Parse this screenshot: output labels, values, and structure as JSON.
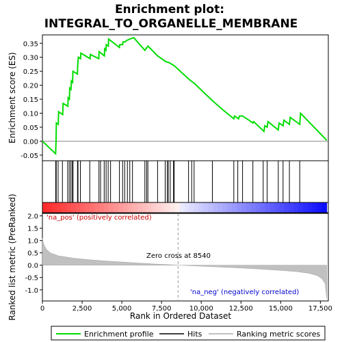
{
  "chart_data": {
    "type": "line",
    "title_line1": "Enrichment plot:",
    "title_line2": "INTEGRAL_TO_ORGANELLE_MEMBRANE",
    "top_panel": {
      "ylabel": "Enrichment score (ES)",
      "ylim": [
        -0.07,
        0.38
      ],
      "yticks": [
        -0.05,
        0.0,
        0.05,
        0.1,
        0.15,
        0.2,
        0.25,
        0.3,
        0.35
      ],
      "ytick_labels": [
        "-0.05",
        "0.00",
        "0.05",
        "0.10",
        "0.15",
        "0.20",
        "0.25",
        "0.30",
        "0.35"
      ],
      "color": "#00dd00",
      "es_curve": [
        [
          0,
          0
        ],
        [
          830,
          -0.045
        ],
        [
          860,
          0.005
        ],
        [
          880,
          0.065
        ],
        [
          1000,
          0.06
        ],
        [
          1020,
          0.105
        ],
        [
          1280,
          0.095
        ],
        [
          1300,
          0.135
        ],
        [
          1600,
          0.125
        ],
        [
          1620,
          0.155
        ],
        [
          1700,
          0.15
        ],
        [
          1720,
          0.19
        ],
        [
          1800,
          0.185
        ],
        [
          1820,
          0.215
        ],
        [
          1900,
          0.21
        ],
        [
          1920,
          0.25
        ],
        [
          2200,
          0.24
        ],
        [
          2220,
          0.27
        ],
        [
          2260,
          0.3
        ],
        [
          2400,
          0.295
        ],
        [
          2420,
          0.315
        ],
        [
          3000,
          0.295
        ],
        [
          3020,
          0.31
        ],
        [
          3550,
          0.295
        ],
        [
          3570,
          0.32
        ],
        [
          3900,
          0.305
        ],
        [
          3920,
          0.33
        ],
        [
          4000,
          0.325
        ],
        [
          4020,
          0.345
        ],
        [
          4150,
          0.34
        ],
        [
          4170,
          0.365
        ],
        [
          4850,
          0.335
        ],
        [
          4870,
          0.345
        ],
        [
          5050,
          0.345
        ],
        [
          5070,
          0.355
        ],
        [
          5200,
          0.355
        ],
        [
          5300,
          0.36
        ],
        [
          5500,
          0.365
        ],
        [
          5750,
          0.37
        ],
        [
          6450,
          0.325
        ],
        [
          6650,
          0.34
        ],
        [
          7250,
          0.305
        ],
        [
          7750,
          0.285
        ],
        [
          8000,
          0.28
        ],
        [
          8300,
          0.27
        ],
        [
          9250,
          0.22
        ],
        [
          9600,
          0.205
        ],
        [
          10700,
          0.145
        ],
        [
          11300,
          0.115
        ],
        [
          12050,
          0.08
        ],
        [
          12100,
          0.09
        ],
        [
          12350,
          0.08
        ],
        [
          12400,
          0.09
        ],
        [
          12600,
          0.09
        ],
        [
          13000,
          0.075
        ],
        [
          13250,
          0.065
        ],
        [
          13300,
          0.07
        ],
        [
          13950,
          0.035
        ],
        [
          14000,
          0.055
        ],
        [
          14150,
          0.05
        ],
        [
          14200,
          0.07
        ],
        [
          14850,
          0.04
        ],
        [
          14900,
          0.065
        ],
        [
          15150,
          0.055
        ],
        [
          15200,
          0.075
        ],
        [
          15550,
          0.06
        ],
        [
          15600,
          0.085
        ],
        [
          16200,
          0.06
        ],
        [
          16250,
          0.1
        ],
        [
          17900,
          0.003
        ]
      ]
    },
    "hits": [
      840,
      870,
      990,
      1260,
      1590,
      1690,
      1790,
      1880,
      1930,
      2210,
      2240,
      2390,
      2980,
      3560,
      3660,
      3890,
      4010,
      4140,
      4290,
      4850,
      5050,
      5180,
      5350,
      5500,
      5670,
      6450,
      6560,
      6640,
      7250,
      7730,
      7860,
      7930,
      8050,
      8250,
      8300,
      9200,
      9400,
      9550,
      10700,
      12050,
      12300,
      12600,
      13250,
      13900,
      14150,
      14850,
      15150,
      15550,
      16200
    ],
    "bottom_panel": {
      "ylabel": "Ranked list metric (PreRanked)",
      "xlabel": "Rank in Ordered Dataset",
      "xlim": [
        0,
        18000
      ],
      "xticks": [
        0,
        2500,
        5000,
        7500,
        10000,
        12500,
        15000,
        17500
      ],
      "xtick_labels": [
        "0",
        "2,500",
        "5,000",
        "7,500",
        "10,000",
        "12,500",
        "15,000",
        "17,500"
      ],
      "ylim": [
        -1.45,
        2.1
      ],
      "yticks": [
        -1.0,
        -0.5,
        0.0,
        0.5,
        1.0,
        1.5,
        2.0
      ],
      "ytick_labels": [
        "-1.0",
        "-0.5",
        "0.0",
        "0.5",
        "1.0",
        "1.5",
        "2.0"
      ],
      "metric_curve": [
        [
          0,
          1.1
        ],
        [
          80,
          0.85
        ],
        [
          250,
          0.65
        ],
        [
          500,
          0.5
        ],
        [
          1000,
          0.38
        ],
        [
          2000,
          0.28
        ],
        [
          3000,
          0.22
        ],
        [
          4000,
          0.17
        ],
        [
          5000,
          0.13
        ],
        [
          6000,
          0.09
        ],
        [
          7000,
          0.05
        ],
        [
          8000,
          0.02
        ],
        [
          8540,
          0.0
        ],
        [
          9000,
          -0.01
        ],
        [
          10000,
          -0.04
        ],
        [
          11000,
          -0.07
        ],
        [
          12000,
          -0.1
        ],
        [
          13000,
          -0.13
        ],
        [
          14000,
          -0.17
        ],
        [
          15000,
          -0.21
        ],
        [
          16000,
          -0.26
        ],
        [
          16800,
          -0.33
        ],
        [
          17300,
          -0.42
        ],
        [
          17600,
          -0.55
        ],
        [
          17800,
          -0.75
        ],
        [
          17900,
          -1.35
        ]
      ],
      "zero_cross_label": "Zero cross at 8540",
      "zero_cross": 8540,
      "pos_label": "'na_pos' (positively correlated)",
      "neg_label": "'na_neg' (negatively correlated)"
    },
    "legend": [
      {
        "label": "Enrichment profile",
        "color": "#00dd00"
      },
      {
        "label": "Hits",
        "color": "#000000"
      },
      {
        "label": "Ranking metric scores",
        "color": "#c0c0c0"
      }
    ],
    "colors": {
      "es_line": "#00dd00",
      "metric_fill": "#c0c0c0",
      "pos_text": "#cc0000",
      "neg_text": "#0000cc",
      "bar_red": "#ff0000",
      "bar_blue": "#0000ff"
    }
  }
}
